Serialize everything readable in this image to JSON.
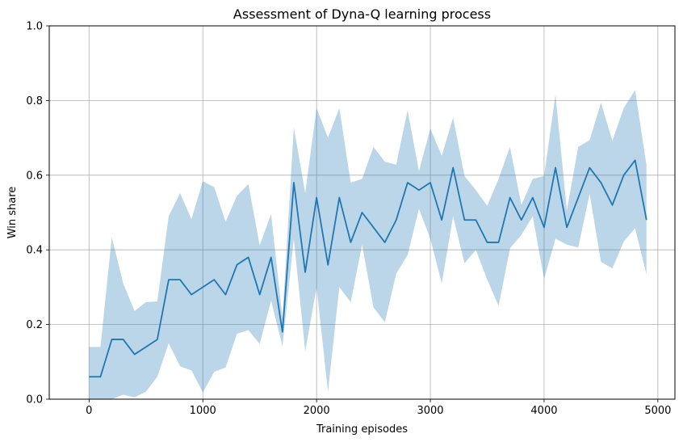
{
  "chart_data": {
    "type": "line",
    "title": "Assessment of Dyna-Q learning process",
    "xlabel": "Training episodes",
    "ylabel": "Win share",
    "xlim": [
      -350,
      5150
    ],
    "ylim": [
      0,
      1
    ],
    "xticks": [
      0,
      1000,
      2000,
      3000,
      4000,
      5000
    ],
    "yticks": [
      0.0,
      0.2,
      0.4,
      0.6,
      0.8,
      1.0
    ],
    "xtick_labels": [
      "0",
      "1000",
      "2000",
      "3000",
      "4000",
      "5000"
    ],
    "ytick_labels": [
      "0.0",
      "0.2",
      "0.4",
      "0.6",
      "0.8",
      "1.0"
    ],
    "grid": true,
    "line_color": "#1f77b4",
    "band_color": "#1f77b4",
    "band_alpha": 0.3,
    "series": [
      {
        "x": [
          0,
          100,
          200,
          300,
          400,
          500,
          600,
          700,
          800,
          900,
          1000,
          1100,
          1200,
          1300,
          1400,
          1500,
          1600,
          1700,
          1800,
          1900,
          2000,
          2100,
          2200,
          2300,
          2400,
          2500,
          2600,
          2700,
          2800,
          2900,
          3000,
          3100,
          3200,
          3300,
          3400,
          3500,
          3600,
          3700,
          3800,
          3900,
          4000,
          4100,
          4200,
          4300,
          4400,
          4500,
          4600,
          4700,
          4800,
          4900
        ],
        "y": [
          0.06,
          0.06,
          0.16,
          0.16,
          0.12,
          0.14,
          0.16,
          0.32,
          0.32,
          0.28,
          0.3,
          0.32,
          0.28,
          0.36,
          0.38,
          0.28,
          0.38,
          0.18,
          0.58,
          0.34,
          0.54,
          0.36,
          0.54,
          0.42,
          0.5,
          0.46,
          0.42,
          0.48,
          0.58,
          0.56,
          0.58,
          0.48,
          0.62,
          0.48,
          0.48,
          0.42,
          0.42,
          0.54,
          0.48,
          0.54,
          0.46,
          0.62,
          0.46,
          0.54,
          0.62,
          0.58,
          0.52,
          0.6,
          0.64,
          0.48
        ],
        "lower": [
          -0.02,
          -0.02,
          0.0,
          0.012,
          0.005,
          0.02,
          0.06,
          0.15,
          0.088,
          0.077,
          0.018,
          0.073,
          0.085,
          0.175,
          0.185,
          0.148,
          0.264,
          0.142,
          0.43,
          0.128,
          0.3,
          0.02,
          0.3,
          0.26,
          0.414,
          0.246,
          0.206,
          0.336,
          0.386,
          0.51,
          0.43,
          0.31,
          0.49,
          0.364,
          0.4,
          0.32,
          0.25,
          0.404,
          0.44,
          0.49,
          0.322,
          0.43,
          0.414,
          0.406,
          0.55,
          0.368,
          0.35,
          0.422,
          0.458,
          0.334
        ],
        "upper": [
          0.14,
          0.14,
          0.434,
          0.31,
          0.236,
          0.26,
          0.262,
          0.49,
          0.552,
          0.482,
          0.584,
          0.568,
          0.475,
          0.545,
          0.576,
          0.412,
          0.496,
          0.218,
          0.728,
          0.552,
          0.78,
          0.7,
          0.78,
          0.58,
          0.59,
          0.676,
          0.636,
          0.628,
          0.774,
          0.61,
          0.725,
          0.652,
          0.754,
          0.598,
          0.56,
          0.518,
          0.59,
          0.676,
          0.52,
          0.59,
          0.598,
          0.816,
          0.506,
          0.676,
          0.694,
          0.794,
          0.692,
          0.78,
          0.828,
          0.626
        ]
      }
    ]
  }
}
